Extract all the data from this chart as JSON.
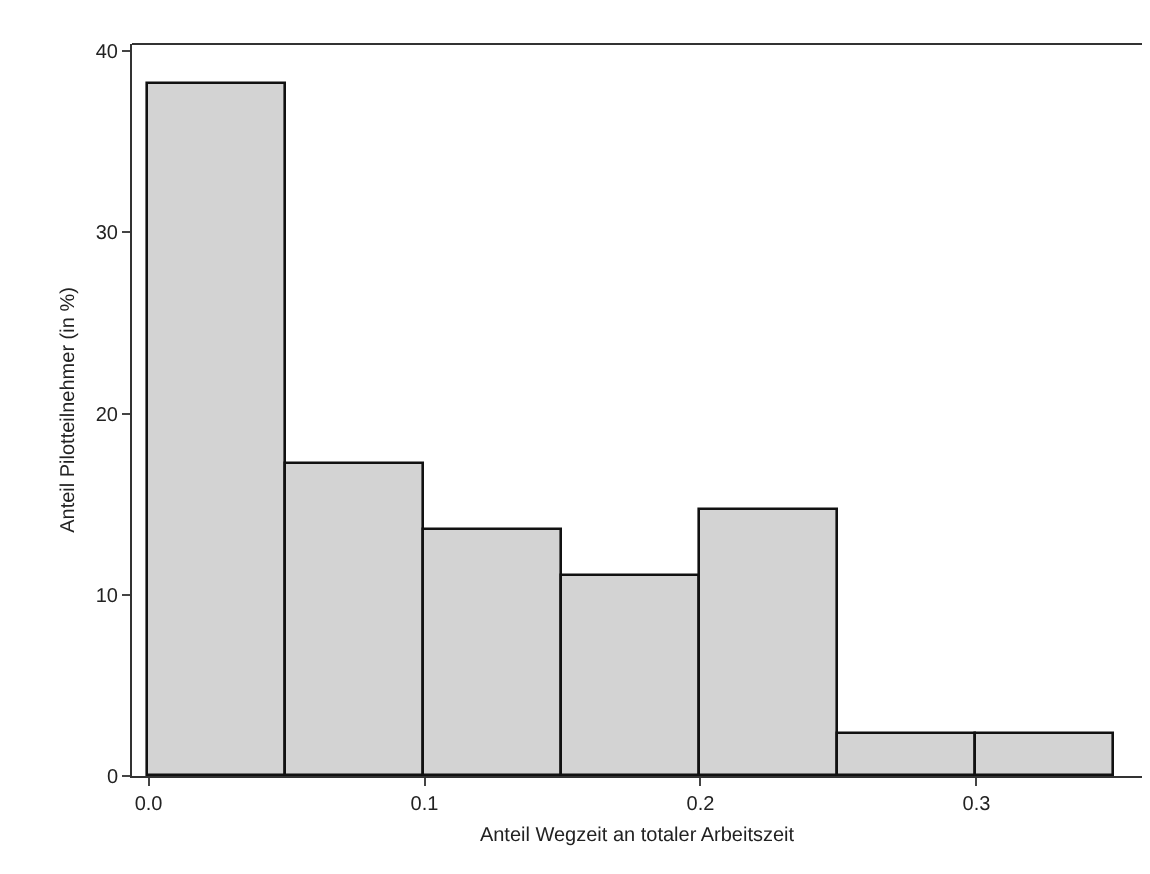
{
  "chart_data": {
    "type": "histogram",
    "xlabel": "Anteil Wegzeit an totaler Arbeitszeit",
    "ylabel": "Anteil Pilotteilnehmer (in %)",
    "bins": [
      0,
      0.05,
      0.1,
      0.15,
      0.2,
      0.25,
      0.3,
      0.35
    ],
    "values": [
      38.2,
      17.2,
      13.6,
      11.0,
      14.7,
      2.3,
      2.3
    ],
    "color": "#d3d3d3",
    "xlim": [
      -0.006,
      0.36
    ],
    "ylim": [
      0,
      40.4
    ],
    "xticks": [
      {
        "value": 0,
        "label": "0.0"
      },
      0.1,
      0.2,
      0.3
    ],
    "yticks": [
      0,
      10,
      20,
      30,
      40
    ],
    "grid": false
  }
}
